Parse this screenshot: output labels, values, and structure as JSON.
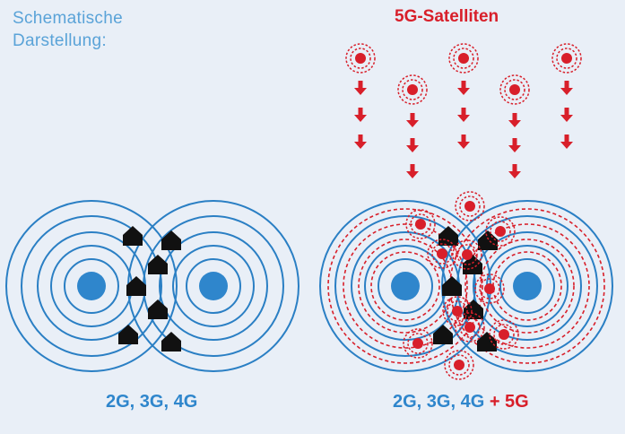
{
  "header": {
    "schematic_line1": "Schematische",
    "schematic_line2": "Darstellung:",
    "satellites_label": "5G-Satelliten"
  },
  "captions": {
    "left": "2G, 3G, 4G",
    "right_main": "2G, 3G, 4G",
    "right_plus": " + 5G"
  },
  "colors": {
    "background": "#e9eff7",
    "blue": "#2f86cc",
    "ring_blue": "#2a7fc4",
    "red": "#d81f2a",
    "house": "#111111",
    "light_blue_text": "#5aa3d8"
  }
}
